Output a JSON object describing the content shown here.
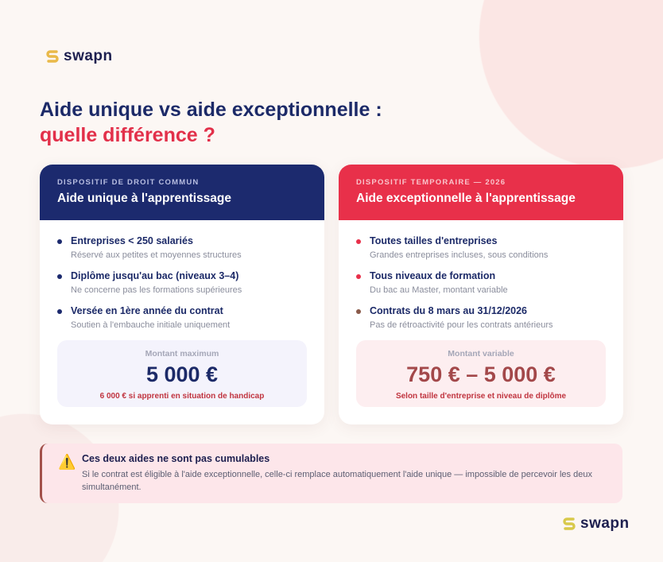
{
  "brand": {
    "name": "swapn",
    "accent": "#e9b949"
  },
  "title": {
    "line1": "Aide unique vs aide exceptionnelle :",
    "line2": "quelle différence ?"
  },
  "cards": [
    {
      "kicker": "DISPOSITIF DE DROIT COMMUN",
      "name": "Aide unique à l'apprentissage",
      "color": "#1c2a6e",
      "items": [
        {
          "title": "Entreprises < 250 salariés",
          "sub": "Réservé aux petites et moyennes structures"
        },
        {
          "title": "Diplôme jusqu'au bac (niveaux 3–4)",
          "sub": "Ne concerne pas les formations supérieures"
        },
        {
          "title": "Versée en 1ère année du contrat",
          "sub": "Soutien à l'embauche initiale uniquement"
        }
      ],
      "amount": {
        "label": "Montant maximum",
        "value": "5 000 €",
        "note": "6 000 € si apprenti en situation de handicap"
      }
    },
    {
      "kicker": "DISPOSITIF TEMPORAIRE — 2026",
      "name": "Aide exceptionnelle à l'apprentissage",
      "color": "#e8304a",
      "items": [
        {
          "title": "Toutes tailles d'entreprises",
          "sub": "Grandes entreprises incluses, sous conditions"
        },
        {
          "title": "Tous niveaux de formation",
          "sub": "Du bac au Master, montant variable"
        },
        {
          "title": "Contrats du 8 mars au 31/12/2026",
          "sub": "Pas de rétroactivité pour les contrats antérieurs"
        }
      ],
      "amount": {
        "label": "Montant variable",
        "value": "750 € – 5 000 €",
        "note": "Selon taille d'entreprise et niveau de diplôme"
      }
    }
  ],
  "warning": {
    "icon": "warning-icon",
    "title": "Ces deux aides ne sont pas cumulables",
    "text": "Si le contrat est éligible à l'aide exceptionnelle, celle-ci remplace automatiquement l'aide unique — impossible de percevoir les deux simultanément."
  }
}
